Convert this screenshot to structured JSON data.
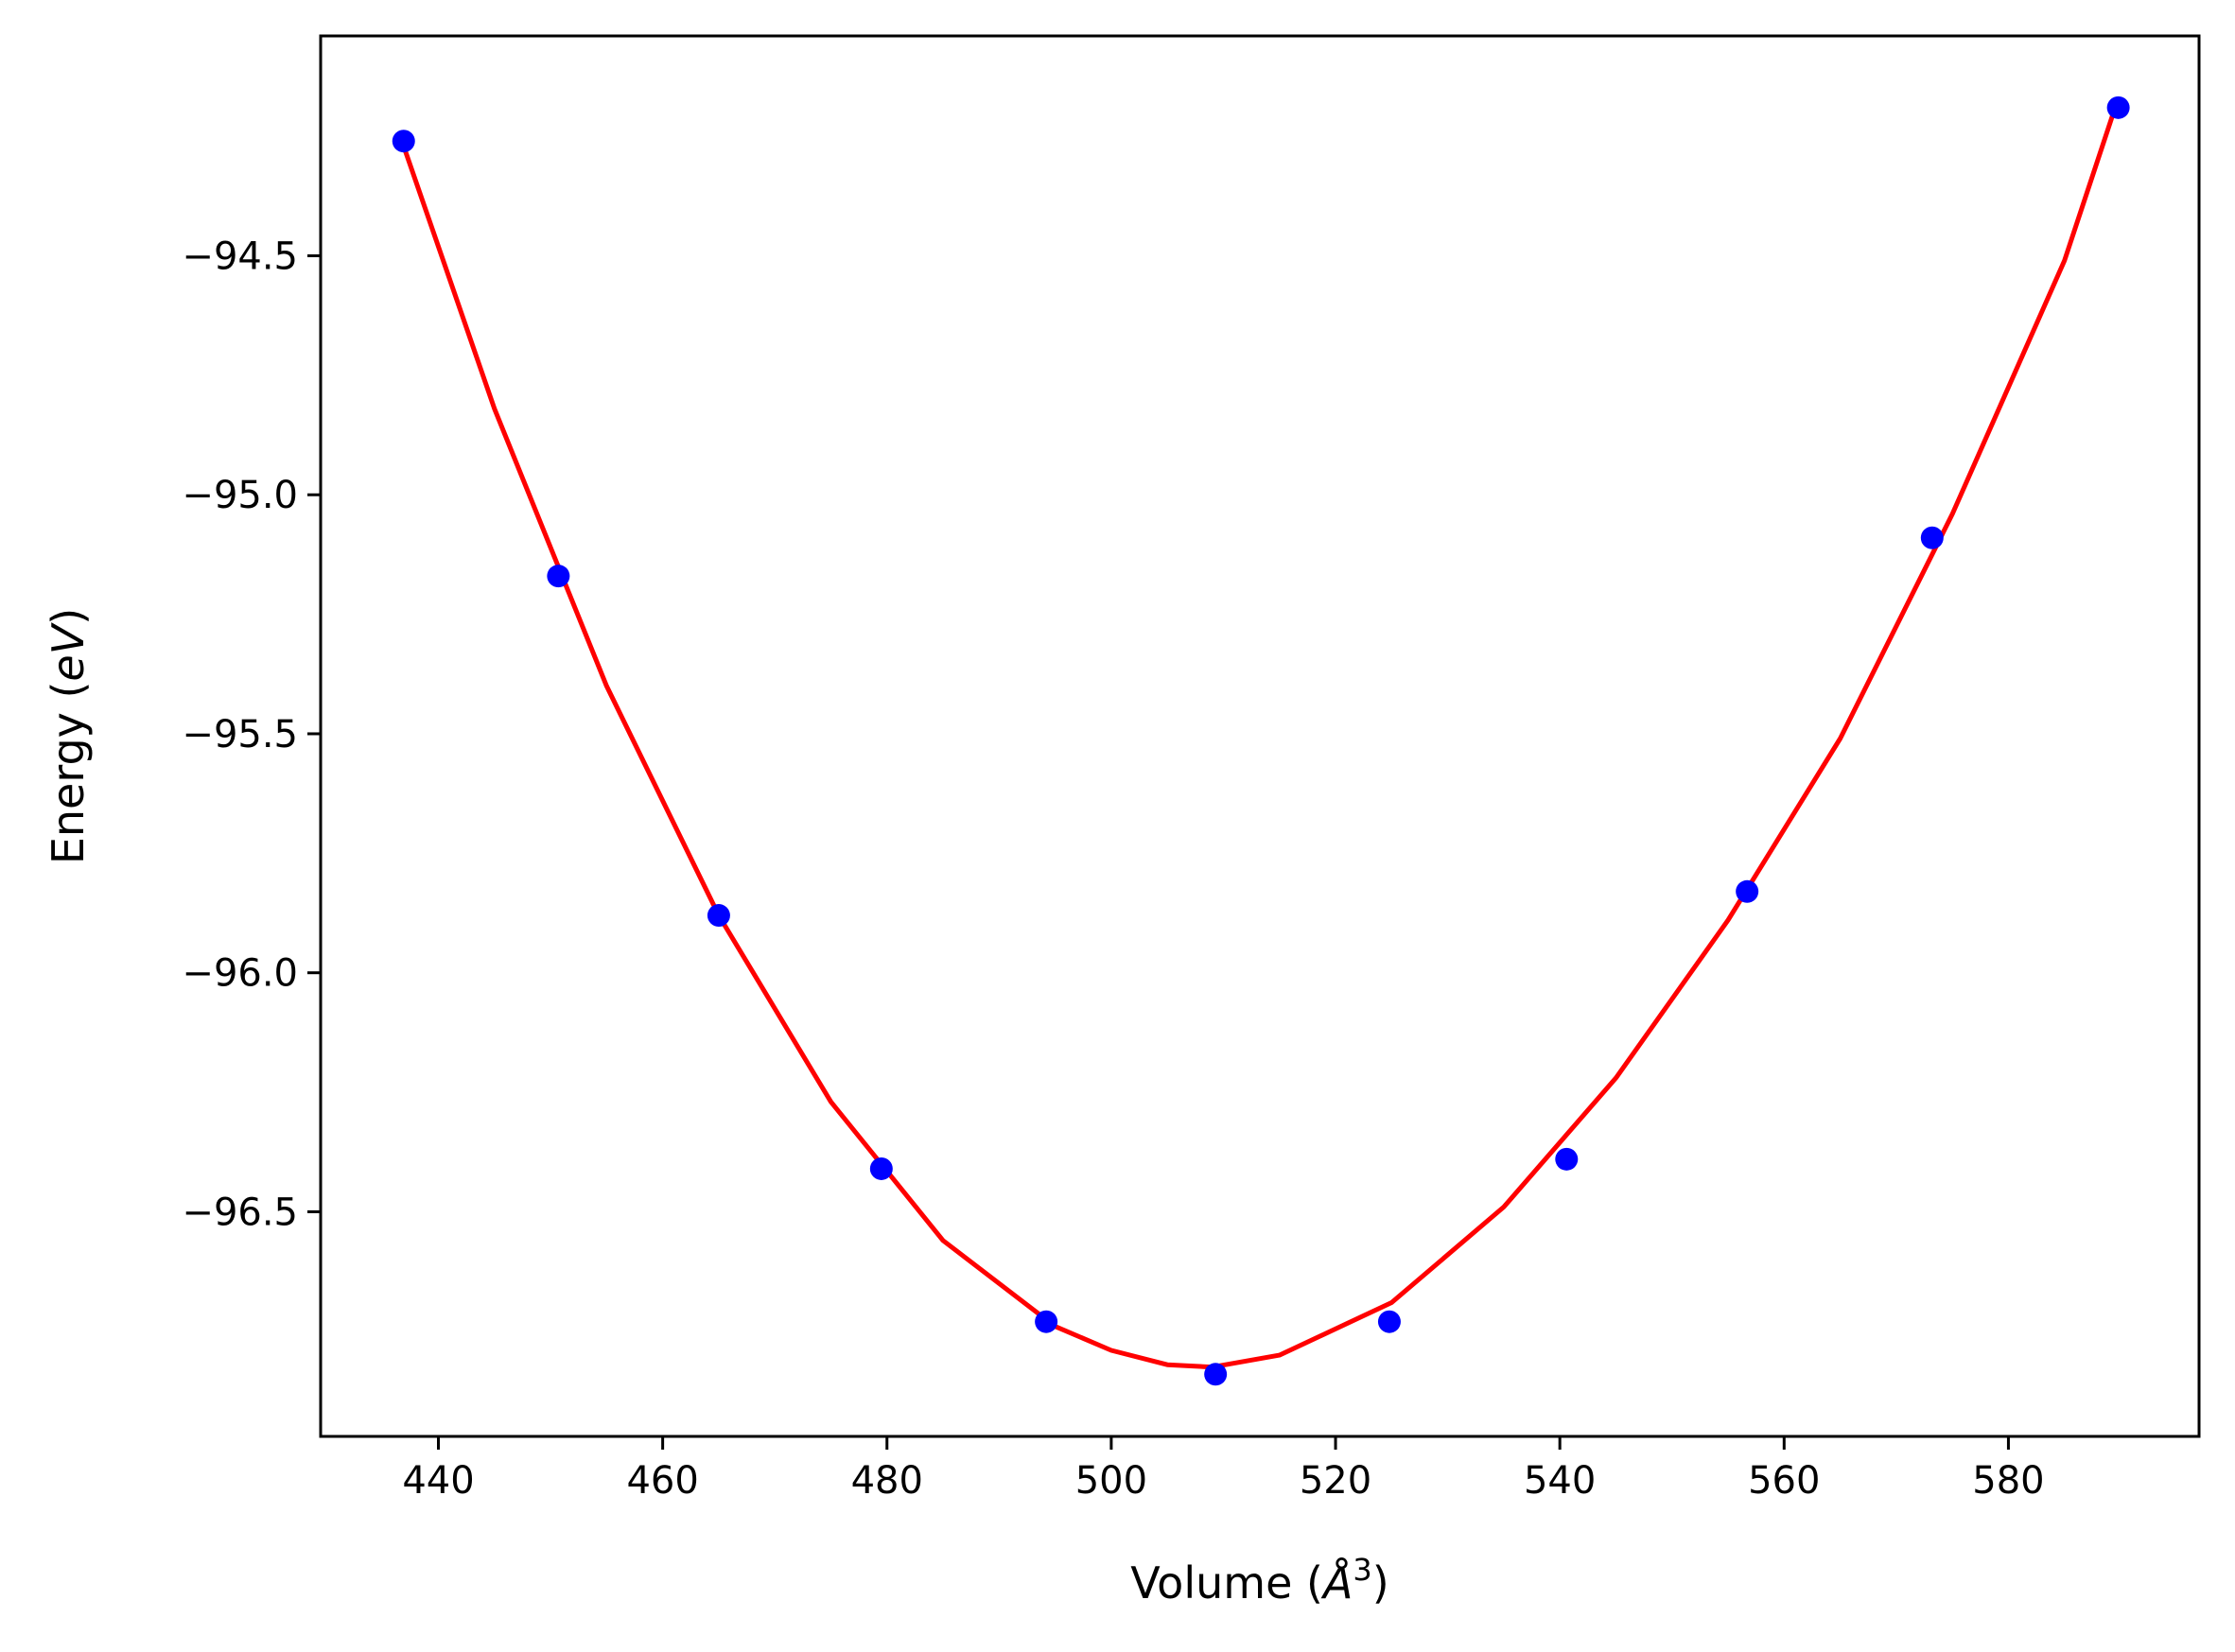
{
  "chart_data": {
    "type": "scatter",
    "xlabel": {
      "prefix": "Volume (",
      "symbol": "Å",
      "sup": "3",
      "suffix": ")"
    },
    "ylabel": {
      "prefix": "Energy (",
      "symbol": "eV",
      "suffix": ")"
    },
    "xlim": [
      429.5,
      597
    ],
    "ylim": [
      -96.97,
      -94.04
    ],
    "xticks": [
      440,
      460,
      480,
      500,
      520,
      540,
      560,
      580
    ],
    "xtick_labels": [
      "440",
      "460",
      "480",
      "500",
      "520",
      "540",
      "560",
      "580"
    ],
    "yticks": [
      -94.5,
      -95.0,
      -95.5,
      -96.0,
      -96.5
    ],
    "ytick_labels": [
      "−94.5",
      "−95.0",
      "−95.5",
      "−96.0",
      "−96.5"
    ],
    "grid": false,
    "legend": "none",
    "series": [
      {
        "kind": "scatter",
        "color": "#0000ff",
        "x": [
          436.9,
          450.7,
          465.0,
          479.5,
          494.2,
          509.3,
          524.8,
          540.6,
          556.7,
          573.2,
          589.8
        ],
        "y": [
          -94.26,
          -95.17,
          -95.88,
          -96.41,
          -96.73,
          -96.84,
          -96.73,
          -96.39,
          -95.83,
          -95.09,
          -94.19
        ]
      },
      {
        "kind": "line",
        "color": "#ff0000",
        "x": [
          436.9,
          445,
          455,
          465,
          475,
          485,
          495,
          500,
          505,
          509,
          515,
          525,
          535,
          545,
          555,
          565,
          575,
          585,
          589.8
        ],
        "y": [
          -94.27,
          -94.82,
          -95.4,
          -95.88,
          -96.27,
          -96.56,
          -96.74,
          -96.79,
          -96.82,
          -96.825,
          -96.8,
          -96.69,
          -96.49,
          -96.22,
          -95.89,
          -95.51,
          -95.04,
          -94.51,
          -94.17
        ]
      }
    ]
  }
}
